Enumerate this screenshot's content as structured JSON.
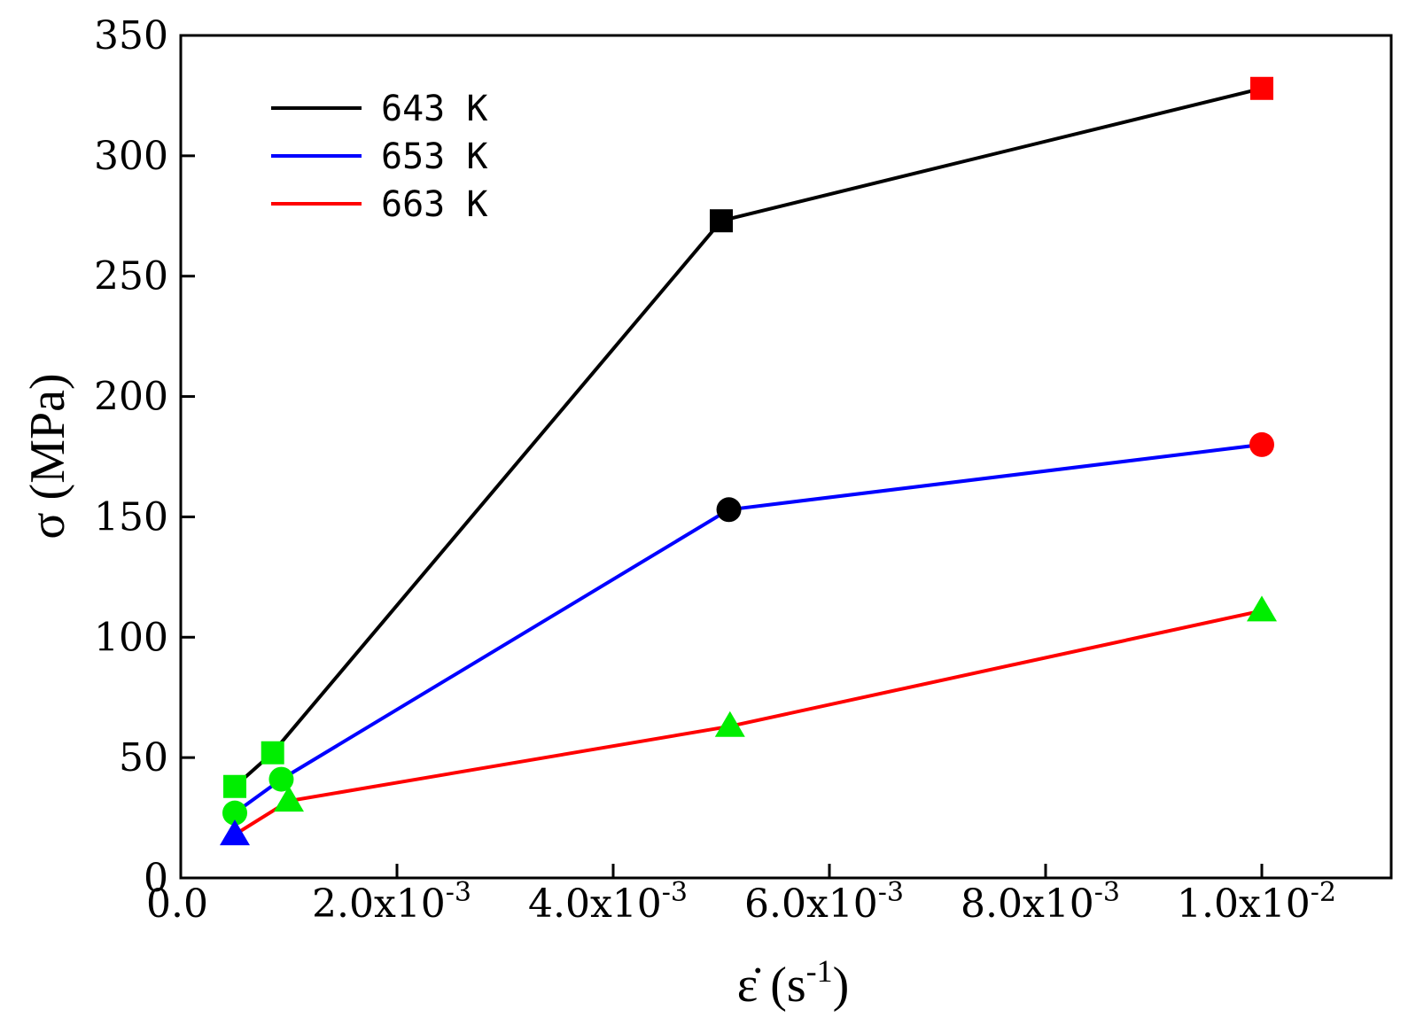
{
  "chart_data": {
    "type": "line",
    "xlabel": "ε̇ (s",
    "xlabel_sup": "-1",
    "xlabel_tail": ")",
    "ylabel": "σ (MPa)",
    "xlim": [
      0,
      0.0115
    ],
    "ylim": [
      0,
      350
    ],
    "grid": false,
    "x_ticks": [
      {
        "value": 0,
        "label": "0.0"
      },
      {
        "value": 0.002,
        "label": "2.0x10",
        "exp": "-3"
      },
      {
        "value": 0.004,
        "label": "4.0x10",
        "exp": "-3"
      },
      {
        "value": 0.006,
        "label": "6.0x10",
        "exp": "-3"
      },
      {
        "value": 0.008,
        "label": "8.0x10",
        "exp": "-3"
      },
      {
        "value": 0.01,
        "label": "1.0x10",
        "exp": "-2"
      }
    ],
    "y_ticks": [
      {
        "value": 0,
        "label": "0"
      },
      {
        "value": 50,
        "label": "50"
      },
      {
        "value": 100,
        "label": "100"
      },
      {
        "value": 150,
        "label": "150"
      },
      {
        "value": 200,
        "label": "200"
      },
      {
        "value": 250,
        "label": "250"
      },
      {
        "value": 300,
        "label": "300"
      },
      {
        "value": 350,
        "label": "350"
      }
    ],
    "legend_position": "top-left",
    "series": [
      {
        "name": "643 K",
        "line_color": "#000000",
        "marker": "square",
        "points": [
          {
            "x": 0.0005,
            "y": 38,
            "color": "#00ee00"
          },
          {
            "x": 0.00085,
            "y": 52,
            "color": "#00ee00"
          },
          {
            "x": 0.005,
            "y": 273,
            "color": "#000000"
          },
          {
            "x": 0.01,
            "y": 328,
            "color": "#ff0000"
          }
        ]
      },
      {
        "name": "653 K",
        "line_color": "#0000ff",
        "marker": "circle",
        "points": [
          {
            "x": 0.0005,
            "y": 27,
            "color": "#00ee00"
          },
          {
            "x": 0.00093,
            "y": 41,
            "color": "#00ee00"
          },
          {
            "x": 0.00507,
            "y": 153,
            "color": "#000000"
          },
          {
            "x": 0.01,
            "y": 180,
            "color": "#ff0000"
          }
        ]
      },
      {
        "name": "663 K",
        "line_color": "#ff0000",
        "marker": "triangle",
        "points": [
          {
            "x": 0.0005,
            "y": 18,
            "color": "#0000ff"
          },
          {
            "x": 0.001,
            "y": 32,
            "color": "#00ee00"
          },
          {
            "x": 0.00508,
            "y": 63,
            "color": "#00ee00"
          },
          {
            "x": 0.01,
            "y": 111,
            "color": "#00ee00"
          }
        ]
      }
    ]
  }
}
